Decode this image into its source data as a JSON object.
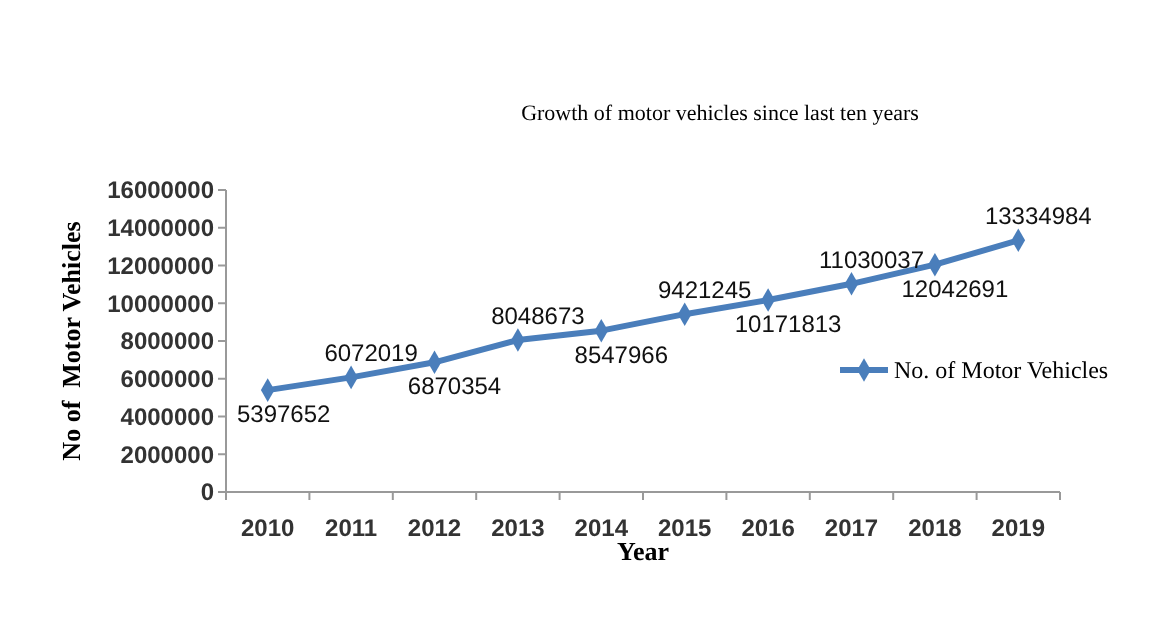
{
  "chart_data": {
    "type": "line",
    "title": "Growth of motor vehicles since last ten years",
    "xlabel": "Year",
    "ylabel": "No of  Motor Vehicles",
    "categories": [
      "2010",
      "2011",
      "2012",
      "2013",
      "2014",
      "2015",
      "2016",
      "2017",
      "2018",
      "2019"
    ],
    "series": [
      {
        "name": "No. of Motor Vehicles",
        "color": "#4a7ebb",
        "values": [
          5397652,
          6072019,
          6870354,
          8048673,
          8547966,
          9421245,
          10171813,
          11030037,
          12042691,
          13334984
        ]
      }
    ],
    "ylim": [
      0,
      16000000
    ],
    "yticks": [
      0,
      2000000,
      4000000,
      6000000,
      8000000,
      10000000,
      12000000,
      14000000,
      16000000
    ],
    "data_labels": true,
    "legend": "right",
    "marker": "diamond",
    "grid": false
  }
}
